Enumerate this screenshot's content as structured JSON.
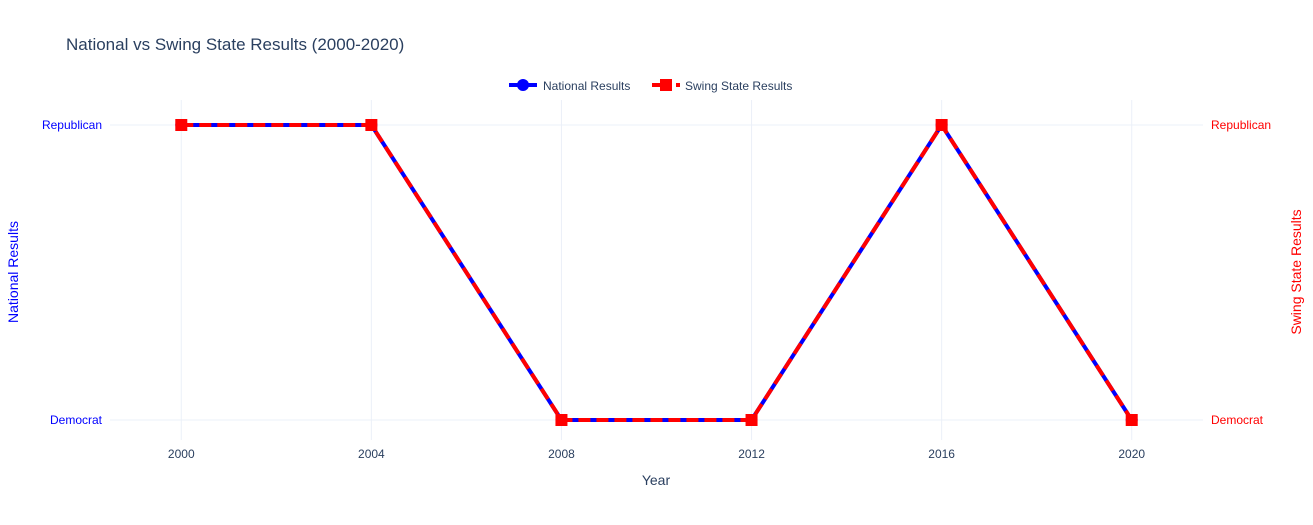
{
  "chart_data": {
    "type": "line",
    "title": "National vs Swing State Results (2000-2020)",
    "xlabel": "Year",
    "x": [
      2000,
      2004,
      2008,
      2012,
      2016,
      2020
    ],
    "xlim": [
      1998.5,
      2021.5
    ],
    "x_ticks": [
      "2000",
      "2004",
      "2008",
      "2012",
      "2016",
      "2020"
    ],
    "y_categories": [
      "Democrat",
      "Republican"
    ],
    "ylabel_left": "National Results",
    "ylabel_right": "Swing State Results",
    "grid": true,
    "legend_position": "top-center",
    "series": [
      {
        "name": "National Results",
        "axis": "left",
        "values": [
          "Republican",
          "Republican",
          "Democrat",
          "Democrat",
          "Republican",
          "Democrat"
        ],
        "color": "#0000ff",
        "marker": "circle",
        "dash": "solid"
      },
      {
        "name": "Swing State Results",
        "axis": "right",
        "values": [
          "Republican",
          "Republican",
          "Democrat",
          "Democrat",
          "Republican",
          "Democrat"
        ],
        "color": "#ff0000",
        "marker": "square",
        "dash": "dash"
      }
    ]
  },
  "colors": {
    "title": "#2a3f5f",
    "axis_text": "#2a3f5f",
    "grid": "#ebf0f8",
    "left_axis": "#0000ff",
    "right_axis": "#ff0000"
  }
}
